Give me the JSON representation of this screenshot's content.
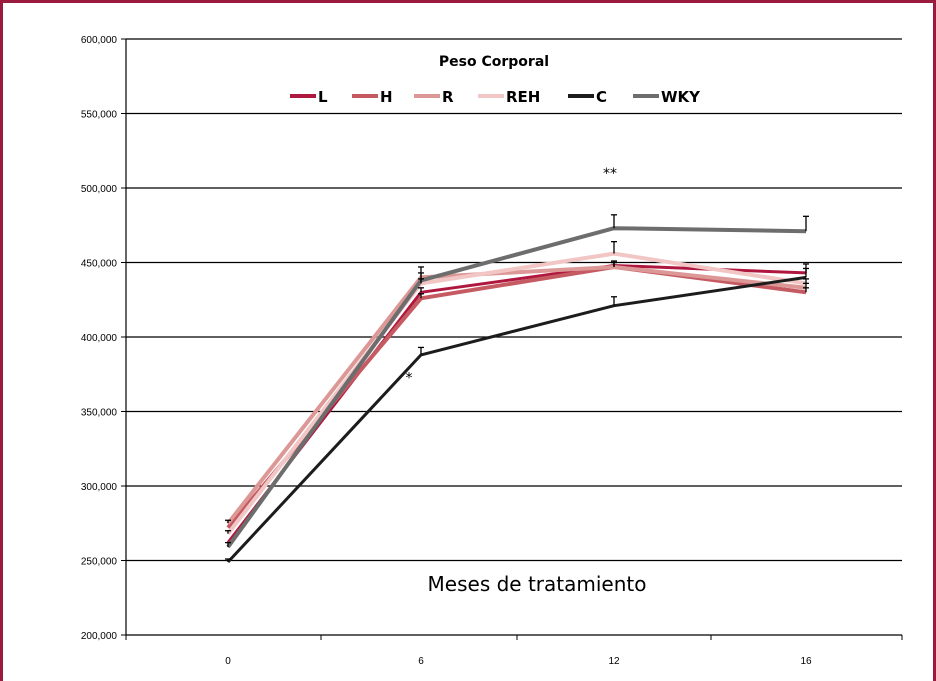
{
  "colors": {
    "frame": "#9b1b3f",
    "grid": "#000000"
  },
  "chart_data": {
    "type": "line",
    "title": "Peso Corporal",
    "xlabel": "Meses de tratamiento",
    "ylabel": "",
    "categories": [
      "0",
      "6",
      "12",
      "16"
    ],
    "ylim": [
      200000,
      600000
    ],
    "yticks": [
      "200,000",
      "250,000",
      "300,000",
      "350,000",
      "400,000",
      "450,000",
      "500,000",
      "550,000",
      "600,000"
    ],
    "ytick_values": [
      200000,
      250000,
      300000,
      350000,
      400000,
      450000,
      500000,
      550000,
      600000
    ],
    "grid": true,
    "legend_position": "top-center",
    "series": [
      {
        "name": "L",
        "color": "#b0173f",
        "values": [
          262000,
          430000,
          448000,
          443000
        ],
        "error": [
          0,
          3000,
          3000,
          6000
        ]
      },
      {
        "name": "H",
        "color": "#c55a62",
        "values": [
          272000,
          426000,
          447000,
          430000
        ],
        "error": [
          0,
          3000,
          3000,
          3000
        ]
      },
      {
        "name": "R",
        "color": "#dc9896",
        "values": [
          275000,
          440000,
          447000,
          433000
        ],
        "error": [
          2000,
          3000,
          3000,
          3000
        ]
      },
      {
        "name": "REH",
        "color": "#f1c6c4",
        "values": [
          268000,
          436000,
          456000,
          436000
        ],
        "error": [
          2000,
          3000,
          8000,
          3000
        ]
      },
      {
        "name": "C",
        "color": "#1c1c1c",
        "values": [
          249000,
          388000,
          421000,
          440000
        ],
        "error": [
          2000,
          5000,
          6000,
          6000
        ]
      },
      {
        "name": "WKY",
        "color": "#6d6d6d",
        "values": [
          259000,
          438000,
          473000,
          471000
        ],
        "error": [
          3000,
          9000,
          9000,
          10000
        ]
      }
    ],
    "annotations": [
      {
        "text": "*",
        "x": "6",
        "y": 375000
      },
      {
        "text": "**",
        "x": "12",
        "y": 512000
      }
    ]
  }
}
